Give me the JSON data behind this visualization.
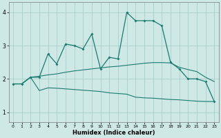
{
  "title": "",
  "xlabel": "Humidex (Indice chaleur)",
  "ylabel": "",
  "bg_color": "#cde8e5",
  "line_color": "#1a7a6e",
  "grid_color": "#a8ceca",
  "xlim": [
    -0.5,
    23.5
  ],
  "ylim": [
    0.7,
    4.3
  ],
  "x_ticks": [
    0,
    1,
    2,
    3,
    4,
    5,
    6,
    7,
    8,
    9,
    10,
    11,
    12,
    13,
    14,
    15,
    16,
    17,
    18,
    19,
    20,
    21,
    22,
    23
  ],
  "y_ticks": [
    1,
    2,
    3,
    4
  ],
  "line1_x": [
    0,
    1,
    2,
    3,
    4,
    5,
    6,
    7,
    8,
    9,
    10,
    11,
    12,
    13,
    14,
    15,
    16,
    17,
    18,
    19,
    20,
    21,
    22,
    23
  ],
  "line1_y": [
    1.85,
    1.85,
    2.05,
    2.05,
    2.75,
    2.45,
    3.05,
    3.0,
    2.9,
    3.35,
    2.3,
    2.65,
    2.6,
    4.0,
    3.75,
    3.75,
    3.75,
    3.6,
    2.5,
    2.3,
    2.0,
    2.0,
    1.92,
    1.32
  ],
  "line2_x": [
    0,
    1,
    2,
    3,
    4,
    5,
    6,
    7,
    8,
    9,
    10,
    11,
    12,
    13,
    14,
    15,
    16,
    17,
    18,
    19,
    20,
    21,
    22,
    23
  ],
  "line2_y": [
    1.85,
    1.85,
    2.05,
    2.08,
    2.12,
    2.15,
    2.2,
    2.24,
    2.27,
    2.3,
    2.33,
    2.36,
    2.38,
    2.41,
    2.44,
    2.47,
    2.49,
    2.49,
    2.48,
    2.35,
    2.28,
    2.22,
    2.05,
    1.92
  ],
  "line3_x": [
    0,
    1,
    2,
    3,
    4,
    5,
    6,
    7,
    8,
    9,
    10,
    11,
    12,
    13,
    14,
    15,
    16,
    17,
    18,
    19,
    20,
    21,
    22,
    23
  ],
  "line3_y": [
    1.85,
    1.85,
    2.05,
    1.65,
    1.73,
    1.72,
    1.7,
    1.68,
    1.66,
    1.64,
    1.62,
    1.58,
    1.56,
    1.54,
    1.45,
    1.43,
    1.42,
    1.4,
    1.38,
    1.37,
    1.35,
    1.33,
    1.32,
    1.32
  ]
}
